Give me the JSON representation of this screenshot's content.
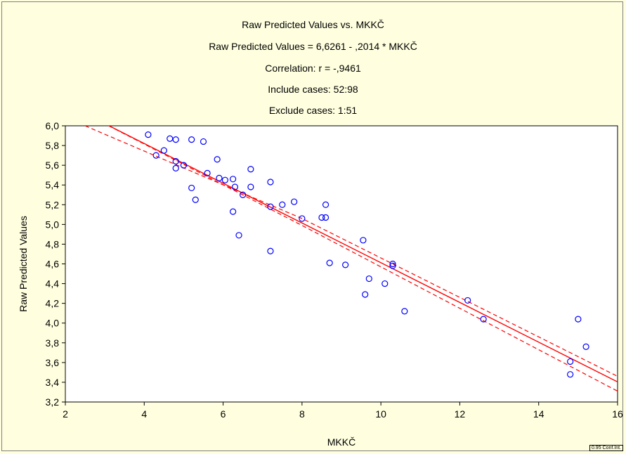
{
  "header": {
    "title": "Raw Predicted Values  vs. MKKČ",
    "equation": "Raw Predicted Values  = 6,6261 - ,2014  * MKKČ",
    "correlation": "Correlation: r = -,9461",
    "include_cases": "Include cases: 52:98",
    "exclude_cases": "Exclude cases: 1:51"
  },
  "corner_mark": "0.95 Conf.Int.",
  "colors": {
    "background": "#ffffe0",
    "plot_area": "#ffffff",
    "points": "#0000ff",
    "fit_line": "#ff0000",
    "conf_band": "#ff0000"
  },
  "chart_data": {
    "type": "scatter",
    "title": "Raw Predicted Values  vs. MKKČ",
    "xlabel": "MKKČ",
    "ylabel": "Raw Predicted Values",
    "xlim": [
      2,
      16
    ],
    "ylim": [
      3.2,
      6.0
    ],
    "x_ticks": [
      2,
      4,
      6,
      8,
      10,
      12,
      14,
      16
    ],
    "x_tick_labels": [
      "2",
      "4",
      "6",
      "8",
      "10",
      "12",
      "14",
      "16"
    ],
    "y_ticks": [
      3.2,
      3.4,
      3.6,
      3.8,
      4.0,
      4.2,
      4.4,
      4.6,
      4.8,
      5.0,
      5.2,
      5.4,
      5.6,
      5.8,
      6.0
    ],
    "y_tick_labels": [
      "3,2",
      "3,4",
      "3,6",
      "3,8",
      "4,0",
      "4,2",
      "4,4",
      "4,6",
      "4,8",
      "5,0",
      "5,2",
      "5,4",
      "5,6",
      "5,8",
      "6,0"
    ],
    "grid": false,
    "fit": {
      "intercept": 6.6261,
      "slope": -0.2014
    },
    "confidence_band": {
      "level": 0.95,
      "upper": [
        [
          2.5,
          6.0
        ],
        [
          8,
          5.06
        ],
        [
          16,
          3.46
        ]
      ],
      "lower": [
        [
          3.1,
          6.0
        ],
        [
          8,
          4.99
        ],
        [
          16,
          3.31
        ]
      ]
    },
    "points": [
      [
        4.1,
        5.91
      ],
      [
        4.3,
        5.7
      ],
      [
        4.5,
        5.75
      ],
      [
        4.65,
        5.87
      ],
      [
        4.8,
        5.86
      ],
      [
        4.8,
        5.64
      ],
      [
        4.8,
        5.57
      ],
      [
        5.0,
        5.6
      ],
      [
        5.2,
        5.86
      ],
      [
        5.2,
        5.37
      ],
      [
        5.3,
        5.25
      ],
      [
        5.5,
        5.84
      ],
      [
        5.6,
        5.52
      ],
      [
        5.85,
        5.66
      ],
      [
        5.9,
        5.47
      ],
      [
        6.05,
        5.45
      ],
      [
        6.25,
        5.46
      ],
      [
        6.3,
        5.38
      ],
      [
        6.25,
        5.13
      ],
      [
        6.4,
        4.89
      ],
      [
        6.5,
        5.3
      ],
      [
        6.7,
        5.56
      ],
      [
        6.7,
        5.38
      ],
      [
        7.2,
        5.43
      ],
      [
        7.2,
        5.18
      ],
      [
        7.2,
        4.73
      ],
      [
        7.5,
        5.2
      ],
      [
        7.8,
        5.23
      ],
      [
        8.0,
        5.06
      ],
      [
        8.5,
        5.07
      ],
      [
        8.6,
        5.2
      ],
      [
        8.6,
        5.07
      ],
      [
        8.7,
        4.61
      ],
      [
        9.1,
        4.59
      ],
      [
        9.55,
        4.84
      ],
      [
        9.6,
        4.29
      ],
      [
        9.7,
        4.45
      ],
      [
        10.1,
        4.4
      ],
      [
        10.3,
        4.6
      ],
      [
        10.3,
        4.58
      ],
      [
        10.6,
        4.12
      ],
      [
        12.2,
        4.23
      ],
      [
        12.6,
        4.04
      ],
      [
        14.8,
        3.61
      ],
      [
        14.8,
        3.48
      ],
      [
        15.0,
        4.04
      ],
      [
        15.2,
        3.76
      ]
    ]
  }
}
